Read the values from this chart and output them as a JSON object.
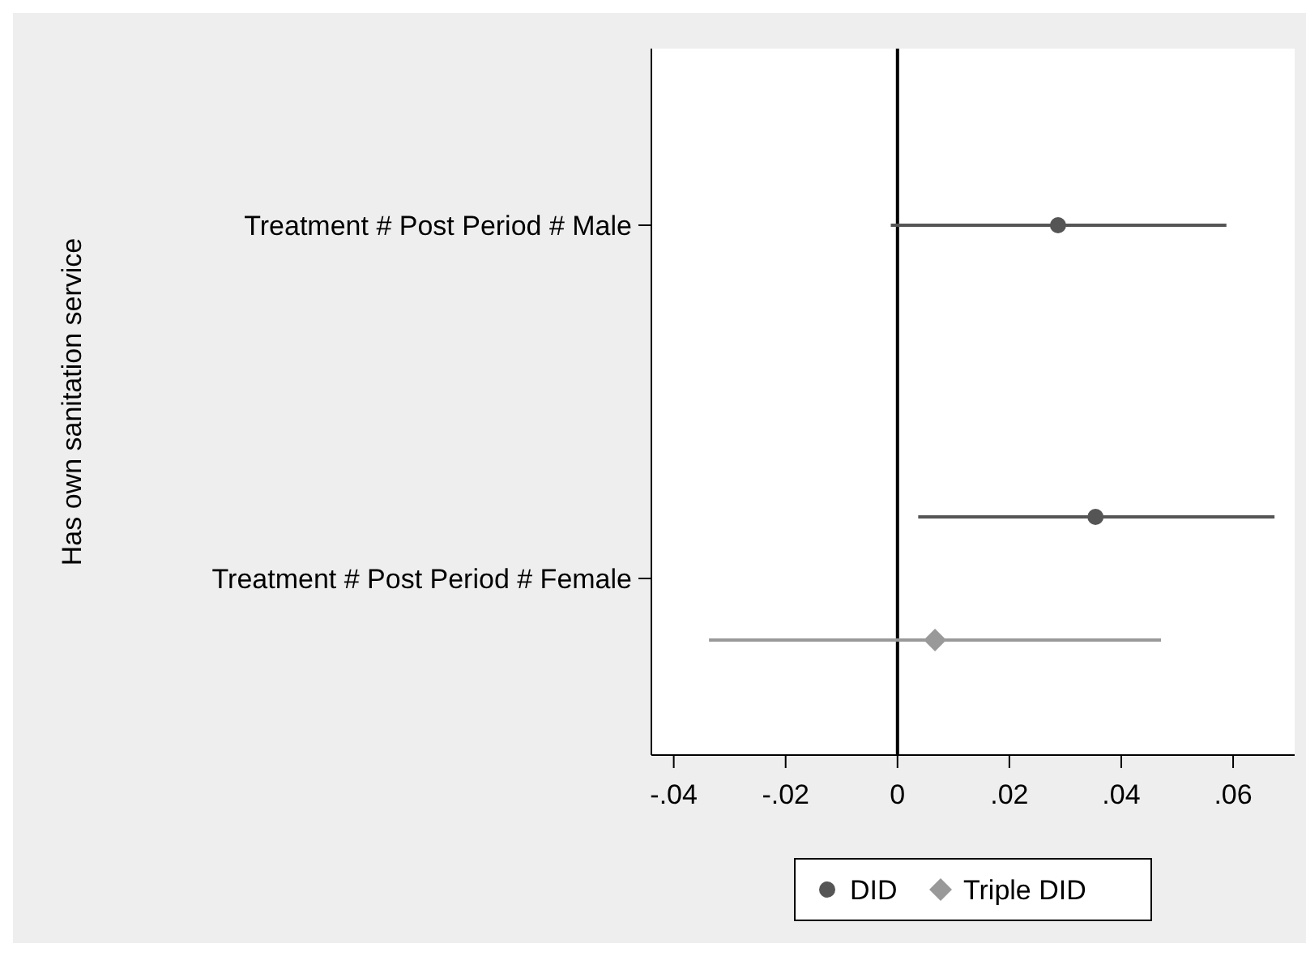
{
  "chart_data": {
    "type": "scatter",
    "orientation": "horizontal",
    "ylabel": "Has own sanitation service",
    "categories": [
      "Treatment # Post Period # Male",
      "Treatment # Post Period # Female"
    ],
    "xlim": [
      -0.044,
      0.071
    ],
    "xticks": [
      {
        "value": -0.04,
        "label": "-.04"
      },
      {
        "value": -0.02,
        "label": "-.02"
      },
      0,
      {
        "value": 0.02,
        "label": ".02"
      },
      {
        "value": 0.04,
        "label": ".04"
      },
      {
        "value": 0.06,
        "label": ".06"
      }
    ],
    "ref_lines": [
      {
        "axis": "x",
        "value": 0,
        "color": "#000000"
      }
    ],
    "legend": "bottom",
    "series": [
      {
        "name": "DID",
        "color": "#555555",
        "marker": "circle",
        "values": [
          0.0287,
          0.0354
        ],
        "errors": [
          [
            -0.0012,
            0.0588
          ],
          [
            0.0037,
            0.0674
          ]
        ]
      },
      {
        "name": "Triple DID",
        "color": "#999999",
        "marker": "diamond",
        "values": [
          null,
          0.0067
        ],
        "errors": [
          null,
          [
            -0.0337,
            0.0471
          ]
        ]
      }
    ]
  }
}
